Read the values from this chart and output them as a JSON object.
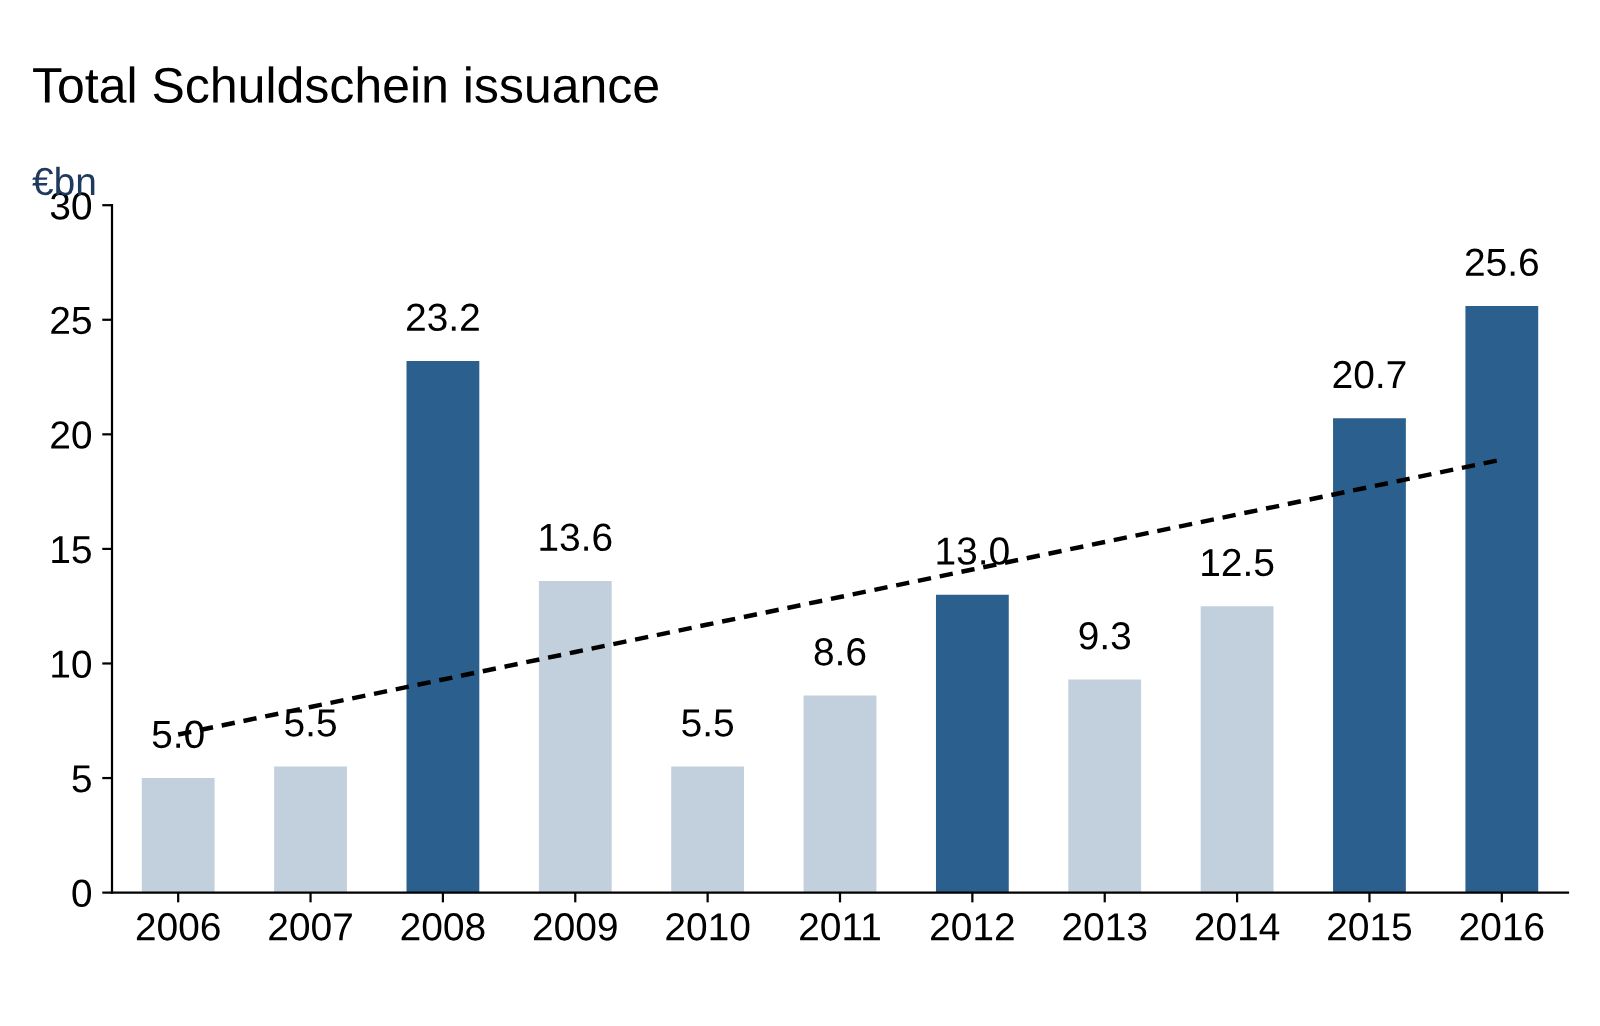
{
  "chart_data": {
    "type": "bar",
    "title": "Total Schuldschein issuance",
    "ylabel": "€bn",
    "categories": [
      "2006",
      "2007",
      "2008",
      "2009",
      "2010",
      "2011",
      "2012",
      "2013",
      "2014",
      "2015",
      "2016"
    ],
    "series": [
      {
        "values": [
          5.0,
          5.5,
          23.2,
          13.6,
          5.5,
          8.6,
          13.0,
          9.3,
          12.5,
          20.7,
          25.6
        ],
        "value_labels": [
          "5.0",
          "5.5",
          "23.2",
          "13.6",
          "5.5",
          "8.6",
          "13.0",
          "9.3",
          "12.5",
          "20.7",
          "25.6"
        ],
        "colors": [
          "#c2cfdc",
          "#c2cfdc",
          "#2b5f8e",
          "#c2cfdc",
          "#c2cfdc",
          "#c2cfdc",
          "#2b5f8e",
          "#c2cfdc",
          "#c2cfdc",
          "#2b5f8e",
          "#2b5f8e"
        ]
      },
      {
        "type": "line",
        "values": [
          6.9,
          8.1,
          9.3,
          10.5,
          11.7,
          12.9,
          14.1,
          15.3,
          16.5,
          17.7,
          18.9
        ],
        "color": "#000000",
        "line_style": "dashed"
      }
    ],
    "ylim": [
      0,
      30
    ],
    "yticks": [
      0,
      5,
      10,
      15,
      20,
      25,
      30
    ],
    "grid": false,
    "legend": false
  }
}
